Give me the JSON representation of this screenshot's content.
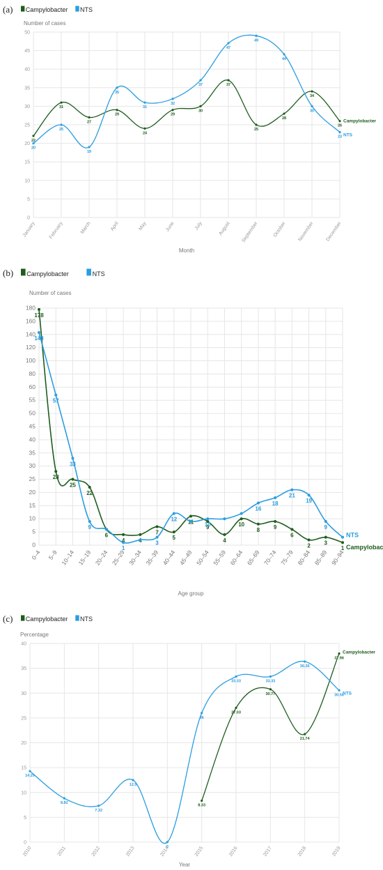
{
  "colors": {
    "campylobacter": "#1e5c1e",
    "nts": "#2a9de0"
  },
  "chart_data": [
    {
      "type": "line",
      "panel": "(a)",
      "legend": [
        "Campylobacter",
        "NTS"
      ],
      "ylabel": "Number of cases",
      "xlabel": "Month",
      "ylim": [
        0,
        50
      ],
      "yticks": [
        0,
        5,
        10,
        15,
        20,
        25,
        30,
        35,
        40,
        45,
        50
      ],
      "categories": [
        "January",
        "February",
        "March",
        "April",
        "May",
        "June",
        "July",
        "August",
        "September",
        "October",
        "November",
        "December"
      ],
      "series": [
        {
          "name": "Campylobacter",
          "values": [
            22,
            31,
            27,
            29,
            24,
            29,
            30,
            37,
            25,
            28,
            34,
            26
          ],
          "labels": [
            "22",
            "31",
            "27",
            "29",
            "24",
            "29",
            "30",
            "37",
            "25",
            "28",
            "34",
            "26"
          ]
        },
        {
          "name": "NTS",
          "values": [
            20,
            25,
            19,
            35,
            31,
            32,
            37,
            47,
            49,
            44,
            30,
            23
          ],
          "labels": [
            "20",
            "25",
            "19",
            "35",
            "31",
            "32",
            "37",
            "47",
            "49",
            "44",
            "30",
            "23"
          ]
        }
      ],
      "end_labels": [
        "Campylobacter",
        "NTS"
      ]
    },
    {
      "type": "line",
      "panel": "(b)",
      "legend": [
        "Campylobacter",
        "NTS"
      ],
      "ylabel": "Number of cases",
      "xlabel": "Age group",
      "yticks": [
        0,
        5,
        10,
        15,
        20,
        25,
        30,
        35,
        40,
        45,
        50,
        55,
        60,
        80,
        100,
        120,
        140,
        160,
        180
      ],
      "ylim": [
        0,
        180
      ],
      "y_scale": "broken (0–60 step 5, 60–180 step 20)",
      "categories": [
        "0–4",
        "5–9",
        "10–14",
        "15–19",
        "20–24",
        "25–29",
        "30–34",
        "35–39",
        "40–44",
        "45–49",
        "50–54",
        "55–59",
        "60–64",
        "65–69",
        "70–74",
        "75–79",
        "80–84",
        "85–89",
        "90–94"
      ],
      "series": [
        {
          "name": "Campylobacter",
          "values": [
            178,
            28,
            25,
            22,
            6,
            4,
            4,
            7,
            5,
            11,
            9,
            4,
            10,
            8,
            9,
            6,
            2,
            3,
            1
          ],
          "labels": [
            "178",
            "28",
            "25",
            "22",
            "6",
            "4",
            "4",
            "7",
            "5",
            "11",
            "9",
            "4",
            "10",
            "8",
            "9",
            "6",
            "2",
            "3",
            "1"
          ]
        },
        {
          "name": "NTS",
          "values": [
            143,
            57,
            33,
            9,
            6,
            1,
            2,
            3,
            12,
            9,
            10,
            10,
            12,
            16,
            18,
            21,
            19,
            9,
            3
          ],
          "labels": [
            "143",
            "57",
            "33",
            "9",
            "",
            "1",
            "",
            "3",
            "12",
            "",
            "10",
            "",
            "",
            "16",
            "18",
            "21",
            "19",
            "9",
            ""
          ]
        }
      ],
      "end_labels": [
        "NTS",
        "Campylobacter"
      ]
    },
    {
      "type": "line",
      "panel": "(c)",
      "legend": [
        "Campylobacter",
        "NTS"
      ],
      "ylabel": "Percentage",
      "xlabel": "Year",
      "ylim": [
        0,
        40
      ],
      "yticks": [
        0,
        5,
        10,
        15,
        20,
        25,
        30,
        35,
        40
      ],
      "categories": [
        "2010",
        "2011",
        "2012",
        "2013",
        "2014",
        "2015",
        "2016",
        "2017",
        "2018",
        "2019"
      ],
      "series": [
        {
          "name": "Campylobacter",
          "values": [
            null,
            null,
            null,
            null,
            null,
            8.33,
            27.03,
            30.77,
            21.74,
            37.96
          ],
          "labels": [
            "",
            "",
            "",
            "",
            "",
            "8.33",
            "27.03",
            "30.77",
            "21.74",
            "37.96"
          ]
        },
        {
          "name": "NTS",
          "values": [
            14.29,
            8.82,
            7.32,
            12.5,
            0,
            26,
            33.33,
            33.33,
            36.36,
            30.56
          ],
          "labels": [
            "14.29",
            "8.82",
            "7.32",
            "12.5",
            "0",
            "26",
            "33.33",
            "33.33",
            "36.36",
            "30.56"
          ]
        }
      ],
      "end_labels": [
        "Campylobacter",
        "NTS"
      ]
    }
  ]
}
